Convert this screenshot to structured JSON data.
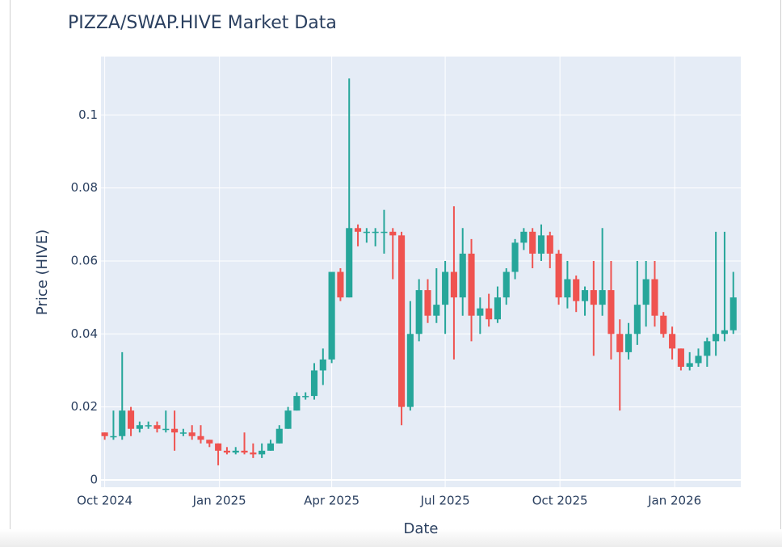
{
  "chart_data": {
    "type": "candlestick",
    "title": "PIZZA/SWAP.HIVE Market Data",
    "xlabel": "Date",
    "ylabel": "Price (HIVE)",
    "increasing_color": "#26a69a",
    "decreasing_color": "#ef5350",
    "grid": true,
    "xlim": [
      "2024-09-28",
      "2026-02-23"
    ],
    "xticks": [
      {
        "value": "2024-10-01",
        "label": "Oct 2024"
      },
      {
        "value": "2025-01-01",
        "label": "Jan 2025"
      },
      {
        "value": "2025-04-01",
        "label": "Apr 2025"
      },
      {
        "value": "2025-07-01",
        "label": "Jul 2025"
      },
      {
        "value": "2025-10-01",
        "label": "Oct 2025"
      },
      {
        "value": "2026-01-01",
        "label": "Jan 2026"
      }
    ],
    "ylim": [
      -0.002,
      0.116
    ],
    "yticks": [
      0,
      0.02,
      0.04,
      0.06,
      0.08,
      0.1
    ],
    "x": [
      "2024-10-01",
      "2024-10-08",
      "2024-10-15",
      "2024-10-22",
      "2024-10-29",
      "2024-11-05",
      "2024-11-12",
      "2024-11-19",
      "2024-11-26",
      "2024-12-03",
      "2024-12-10",
      "2024-12-17",
      "2024-12-24",
      "2024-12-31",
      "2025-01-07",
      "2025-01-14",
      "2025-01-21",
      "2025-01-28",
      "2025-02-04",
      "2025-02-11",
      "2025-02-18",
      "2025-02-25",
      "2025-03-04",
      "2025-03-11",
      "2025-03-18",
      "2025-03-25",
      "2025-04-01",
      "2025-04-08",
      "2025-04-15",
      "2025-04-22",
      "2025-04-29",
      "2025-05-06",
      "2025-05-13",
      "2025-05-20",
      "2025-05-27",
      "2025-06-03",
      "2025-06-10",
      "2025-06-17",
      "2025-06-24",
      "2025-07-01",
      "2025-07-08",
      "2025-07-15",
      "2025-07-22",
      "2025-07-29",
      "2025-08-05",
      "2025-08-12",
      "2025-08-19",
      "2025-08-26",
      "2025-09-02",
      "2025-09-09",
      "2025-09-16",
      "2025-09-23",
      "2025-09-30",
      "2025-10-07",
      "2025-10-14",
      "2025-10-21",
      "2025-10-28",
      "2025-11-04",
      "2025-11-11",
      "2025-11-18",
      "2025-11-25",
      "2025-12-02",
      "2025-12-09",
      "2025-12-16",
      "2025-12-23",
      "2025-12-30",
      "2026-01-06",
      "2026-01-13",
      "2026-01-20",
      "2026-01-27",
      "2026-02-03",
      "2026-02-10",
      "2026-02-17"
    ],
    "open": [
      0.013,
      0.012,
      0.012,
      0.019,
      0.014,
      0.015,
      0.015,
      0.014,
      0.014,
      0.013,
      0.013,
      0.012,
      0.011,
      0.01,
      0.008,
      0.0075,
      0.008,
      0.0075,
      0.007,
      0.008,
      0.01,
      0.014,
      0.019,
      0.023,
      0.023,
      0.03,
      0.033,
      0.057,
      0.05,
      0.069,
      0.068,
      0.068,
      0.068,
      0.068,
      0.067,
      0.02,
      0.04,
      0.052,
      0.045,
      0.048,
      0.057,
      0.05,
      0.062,
      0.045,
      0.047,
      0.044,
      0.05,
      0.057,
      0.065,
      0.068,
      0.062,
      0.067,
      0.062,
      0.05,
      0.055,
      0.049,
      0.052,
      0.048,
      0.052,
      0.04,
      0.035,
      0.04,
      0.048,
      0.055,
      0.045,
      0.04,
      0.036,
      0.031,
      0.032,
      0.034,
      0.038,
      0.04,
      0.041
    ],
    "high": [
      0.013,
      0.019,
      0.035,
      0.02,
      0.016,
      0.016,
      0.016,
      0.019,
      0.019,
      0.014,
      0.015,
      0.015,
      0.011,
      0.01,
      0.009,
      0.009,
      0.013,
      0.01,
      0.01,
      0.011,
      0.015,
      0.02,
      0.024,
      0.024,
      0.032,
      0.036,
      0.057,
      0.058,
      0.11,
      0.07,
      0.069,
      0.069,
      0.074,
      0.069,
      0.068,
      0.049,
      0.055,
      0.055,
      0.058,
      0.06,
      0.075,
      0.069,
      0.066,
      0.05,
      0.051,
      0.053,
      0.058,
      0.066,
      0.069,
      0.069,
      0.07,
      0.068,
      0.063,
      0.06,
      0.056,
      0.053,
      0.06,
      0.069,
      0.06,
      0.044,
      0.043,
      0.06,
      0.06,
      0.06,
      0.046,
      0.042,
      0.036,
      0.035,
      0.036,
      0.039,
      0.068,
      0.068,
      0.057
    ],
    "low": [
      0.011,
      0.011,
      0.011,
      0.012,
      0.013,
      0.014,
      0.013,
      0.013,
      0.008,
      0.012,
      0.011,
      0.01,
      0.009,
      0.004,
      0.007,
      0.007,
      0.007,
      0.006,
      0.006,
      0.008,
      0.01,
      0.014,
      0.019,
      0.022,
      0.022,
      0.026,
      0.032,
      0.049,
      0.05,
      0.064,
      0.065,
      0.064,
      0.062,
      0.055,
      0.015,
      0.019,
      0.038,
      0.043,
      0.043,
      0.04,
      0.033,
      0.045,
      0.038,
      0.04,
      0.042,
      0.043,
      0.048,
      0.055,
      0.063,
      0.058,
      0.06,
      0.058,
      0.048,
      0.047,
      0.046,
      0.045,
      0.034,
      0.045,
      0.033,
      0.019,
      0.033,
      0.037,
      0.042,
      0.042,
      0.039,
      0.033,
      0.03,
      0.03,
      0.031,
      0.031,
      0.034,
      0.038,
      0.04
    ],
    "close": [
      0.012,
      0.012,
      0.019,
      0.014,
      0.015,
      0.015,
      0.014,
      0.014,
      0.013,
      0.013,
      0.012,
      0.011,
      0.01,
      0.008,
      0.0075,
      0.008,
      0.0075,
      0.007,
      0.008,
      0.01,
      0.014,
      0.019,
      0.023,
      0.023,
      0.03,
      0.033,
      0.057,
      0.05,
      0.069,
      0.068,
      0.068,
      0.068,
      0.068,
      0.067,
      0.02,
      0.04,
      0.052,
      0.045,
      0.048,
      0.057,
      0.05,
      0.062,
      0.045,
      0.047,
      0.044,
      0.05,
      0.057,
      0.065,
      0.068,
      0.062,
      0.067,
      0.062,
      0.05,
      0.055,
      0.049,
      0.052,
      0.048,
      0.052,
      0.04,
      0.035,
      0.04,
      0.048,
      0.055,
      0.045,
      0.04,
      0.036,
      0.031,
      0.032,
      0.034,
      0.038,
      0.04,
      0.041,
      0.05
    ]
  }
}
